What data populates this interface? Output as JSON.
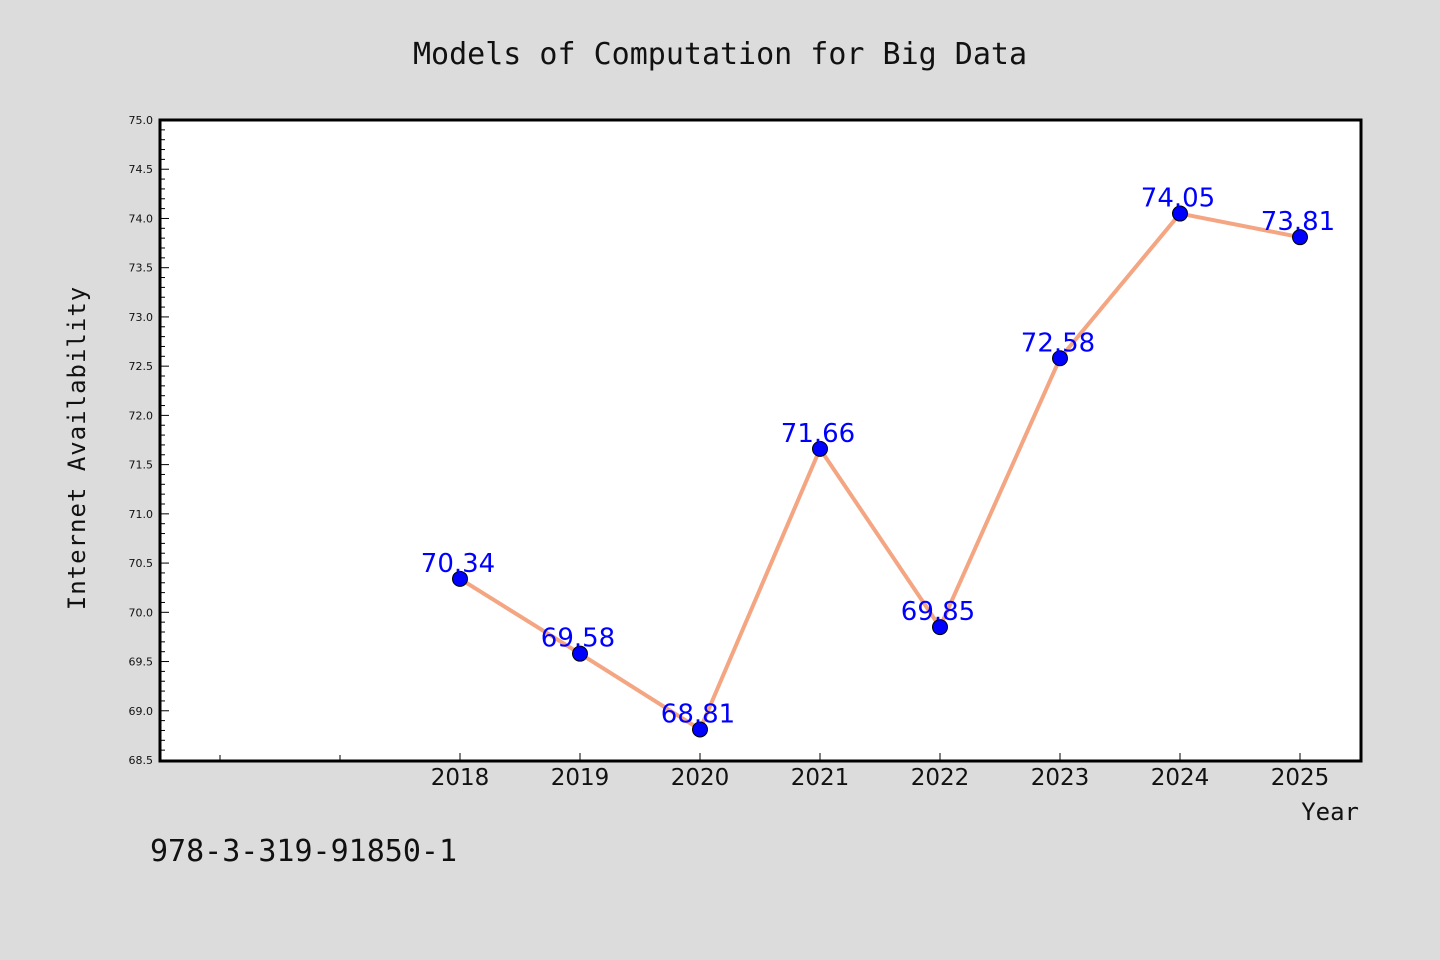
{
  "figure": {
    "background": "#dcdcdc",
    "plot_background": "#ffffff",
    "footer_text": "978-3-319-91850-1"
  },
  "chart_data": {
    "type": "line",
    "title": "Models of Computation for Big Data",
    "xlabel": "Year",
    "ylabel": "Internet Availability",
    "x_categories": [
      "2018",
      "2019",
      "2020",
      "2021",
      "2022",
      "2023",
      "2024",
      "2025"
    ],
    "x_leading_empty_ticks": 2,
    "series": [
      {
        "values": [
          70.34,
          69.58,
          68.81,
          71.66,
          69.85,
          72.58,
          74.05,
          73.81
        ],
        "line_color": "#f4a582",
        "marker_color": "#0000ff",
        "label_color": "#0000ff"
      }
    ],
    "data_labels": [
      "70.34",
      "69.58",
      "68.81",
      "71.66",
      "69.85",
      "72.58",
      "74.05",
      "73.81"
    ],
    "ylim": [
      68.5,
      75.0
    ],
    "y_ticks": [
      "68.5",
      "69.0",
      "69.5",
      "70.0",
      "70.5",
      "71.0",
      "71.5",
      "72.0",
      "72.5",
      "73.0",
      "73.5",
      "74.0",
      "74.5",
      "75.0"
    ],
    "grid": false,
    "legend": "none"
  }
}
